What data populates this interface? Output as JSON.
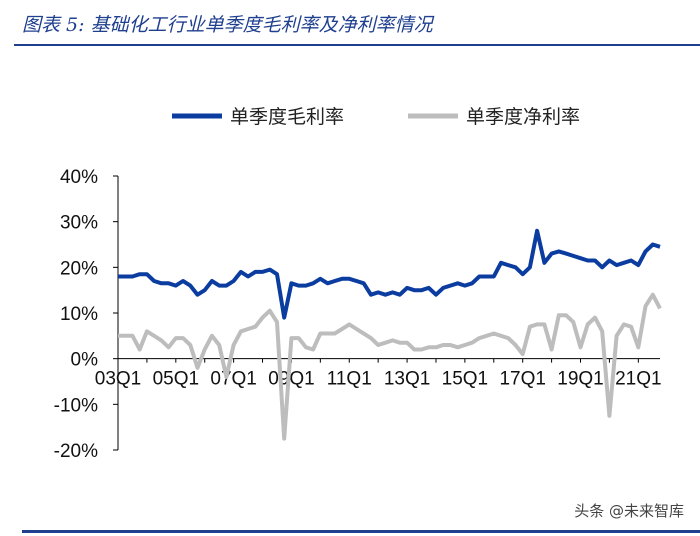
{
  "header": {
    "title": "图表 5:  基础化工行业单季度毛利率及净利率情况"
  },
  "watermark": "头条 @未来智库",
  "colors": {
    "gross": "#0b3c9f",
    "net": "#bdbdbd",
    "axis": "#000000"
  },
  "chart_data": {
    "type": "line",
    "title": "",
    "xlabel": "",
    "ylabel": "",
    "ylim": [
      -20,
      40
    ],
    "yticks": [
      "40%",
      "30%",
      "20%",
      "10%",
      "0%",
      "-10%",
      "-20%"
    ],
    "ytick_values": [
      40,
      30,
      20,
      10,
      0,
      -10,
      -20
    ],
    "x_tick_labels": [
      "03Q1",
      "05Q1",
      "07Q1",
      "09Q1",
      "11Q1",
      "13Q1",
      "15Q1",
      "17Q1",
      "19Q1",
      "21Q1"
    ],
    "x_tick_index": [
      0,
      8,
      16,
      24,
      32,
      40,
      48,
      56,
      64,
      72
    ],
    "legend_position": "top",
    "grid": false,
    "series": [
      {
        "name": "单季度毛利率",
        "values": [
          18,
          18,
          18,
          18.5,
          18.5,
          17,
          16.5,
          16.5,
          16,
          17,
          16,
          14,
          15,
          17,
          16,
          16,
          17,
          19,
          18,
          19,
          19,
          19.5,
          18.5,
          9,
          16.5,
          16,
          16,
          16.5,
          17.5,
          16.5,
          17,
          17.5,
          17.5,
          17,
          16.5,
          14,
          14.5,
          14,
          14.5,
          14,
          15.5,
          15,
          15,
          15.5,
          14,
          15.5,
          16,
          16.5,
          16,
          16.5,
          18,
          18,
          18,
          21,
          20.5,
          20,
          18.5,
          20,
          28,
          21,
          23,
          23.5,
          23,
          22.5,
          22,
          21.5,
          21.5,
          20,
          21.5,
          20.5,
          21,
          21.5,
          20.5,
          23.5,
          25,
          24.5
        ]
      },
      {
        "name": "单季度净利率",
        "values": [
          5,
          5,
          5,
          2,
          6,
          5,
          4,
          2.5,
          4.5,
          4.5,
          3,
          -2,
          2,
          5,
          3,
          -4,
          3,
          6,
          6.5,
          7,
          9,
          10.5,
          8,
          -17.5,
          4.5,
          4.5,
          2.5,
          2,
          5.5,
          5.5,
          5.5,
          6.5,
          7.5,
          6.5,
          5.5,
          4.5,
          3,
          3.5,
          4,
          3.5,
          3.5,
          2,
          2,
          2.5,
          2.5,
          3,
          3,
          2.5,
          3,
          3.5,
          4.5,
          5,
          5.5,
          5,
          4.5,
          3,
          1,
          7,
          7.5,
          7.5,
          2,
          9.5,
          9.5,
          8,
          2.5,
          7.5,
          9,
          6,
          -12.5,
          5,
          7.5,
          7,
          2.5,
          11.5,
          14,
          11
        ]
      }
    ]
  }
}
